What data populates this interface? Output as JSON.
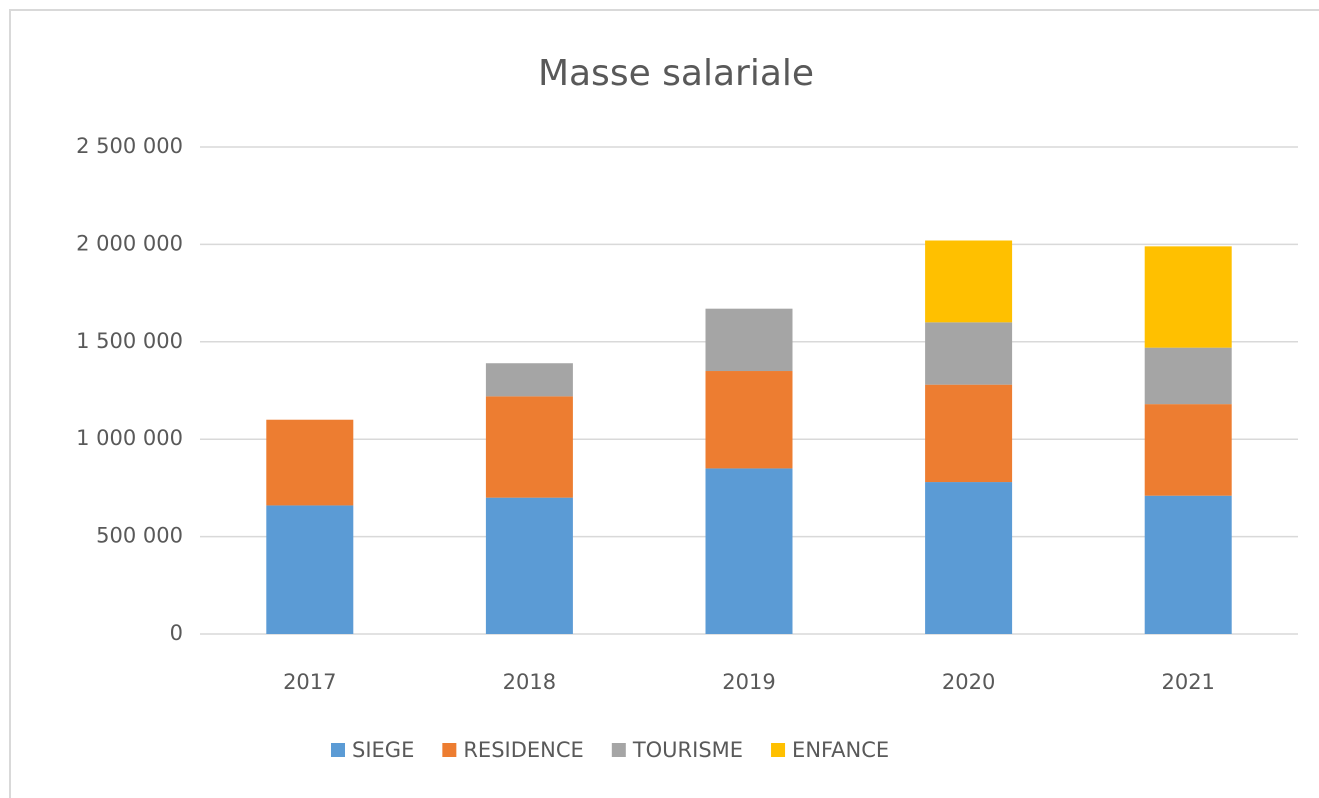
{
  "chart_data": {
    "type": "stacked_bar",
    "title": "Masse salariale",
    "categories": [
      "2017",
      "2018",
      "2019",
      "2020",
      "2021"
    ],
    "series": [
      {
        "name": "SIEGE",
        "color": "#5b9bd5",
        "values": [
          660000,
          700000,
          850000,
          780000,
          710000
        ]
      },
      {
        "name": "RESIDENCE",
        "color": "#ed7d31",
        "values": [
          440000,
          520000,
          500000,
          500000,
          470000
        ]
      },
      {
        "name": "TOURISME",
        "color": "#a5a5a5",
        "values": [
          null,
          170000,
          320000,
          320000,
          290000
        ]
      },
      {
        "name": "ENFANCE",
        "color": "#ffc000",
        "values": [
          null,
          null,
          null,
          420000,
          520000
        ]
      }
    ],
    "ylim": [
      0,
      2500000
    ],
    "yticks": [
      0,
      {
        "value": 500000,
        "label": "500 000"
      },
      {
        "value": 1000000,
        "label": "1 000 000"
      },
      {
        "value": 1500000,
        "label": "1 500 000"
      },
      {
        "value": 2000000,
        "label": "2 000 000"
      },
      {
        "value": 2500000,
        "label": "2 500 000"
      }
    ],
    "grid": true,
    "legend": "bottom"
  }
}
